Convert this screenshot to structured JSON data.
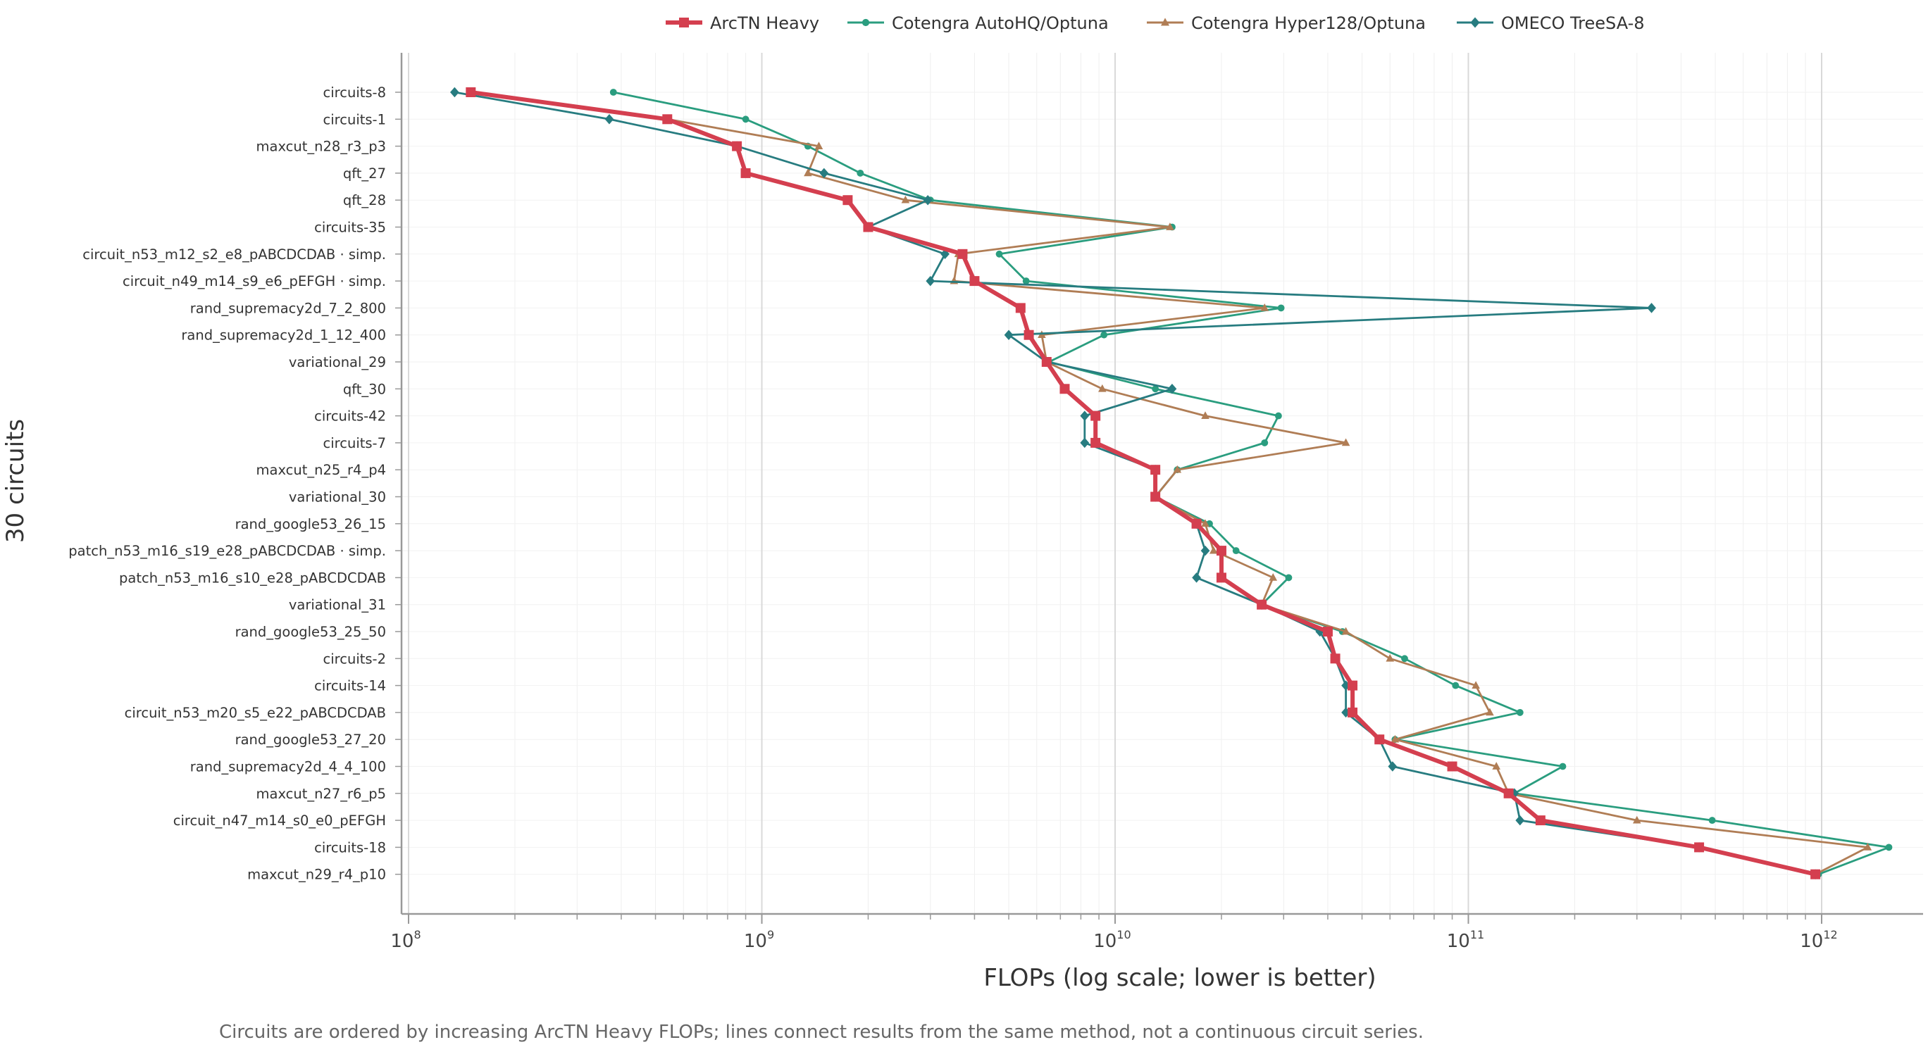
{
  "chart_data": {
    "type": "line",
    "orientation": "horizontal",
    "xlabel": "FLOPs (log scale; lower is better)",
    "ylabel": "30 circuits",
    "caption": "Circuits are ordered by increasing ArcTN Heavy FLOPs; lines connect results from the same method, not a continuous circuit series.",
    "x_scale": "log",
    "xlim": [
      100000000.0,
      1600000000000.0
    ],
    "x_ticks": [
      {
        "base": "10",
        "exp": "8",
        "value": 100000000.0
      },
      {
        "base": "10",
        "exp": "9",
        "value": 1000000000.0
      },
      {
        "base": "10",
        "exp": "10",
        "value": 10000000000.0
      },
      {
        "base": "10",
        "exp": "11",
        "value": 100000000000.0
      },
      {
        "base": "10",
        "exp": "12",
        "value": 1000000000000.0
      }
    ],
    "grid": true,
    "legend_position": "top",
    "categories": [
      "circuits-8",
      "circuits-1",
      "maxcut_n28_r3_p3",
      "qft_27",
      "qft_28",
      "circuits-35",
      "circuit_n53_m12_s2_e8_pABCDCDAB · simp.",
      "circuit_n49_m14_s9_e6_pEFGH · simp.",
      "rand_supremacy2d_7_2_800",
      "rand_supremacy2d_1_12_400",
      "variational_29",
      "qft_30",
      "circuits-42",
      "circuits-7",
      "maxcut_n25_r4_p4",
      "variational_30",
      "rand_google53_26_15",
      "patch_n53_m16_s19_e28_pABCDCDAB · simp.",
      "patch_n53_m16_s10_e28_pABCDCDAB",
      "variational_31",
      "rand_google53_25_50",
      "circuits-2",
      "circuits-14",
      "circuit_n53_m20_s5_e22_pABCDCDAB",
      "rand_google53_27_20",
      "rand_supremacy2d_4_4_100",
      "maxcut_n27_r6_p5",
      "circuit_n47_m14_s0_e0_pEFGH",
      "circuits-18",
      "maxcut_n29_r4_p10"
    ],
    "series": [
      {
        "name": "ArcTN Heavy",
        "color": "#d43f4f",
        "marker": "square",
        "values": [
          150000000.0,
          540000000.0,
          850000000.0,
          900000000.0,
          1750000000.0,
          2000000000.0,
          3700000000.0,
          4000000000.0,
          5400000000.0,
          5700000000.0,
          6400000000.0,
          7200000000.0,
          8800000000.0,
          8800000000.0,
          13000000000.0,
          13000000000.0,
          17000000000.0,
          20000000000.0,
          20000000000.0,
          26000000000.0,
          40000000000.0,
          42000000000.0,
          47000000000.0,
          47000000000.0,
          56000000000.0,
          90000000000.0,
          130000000000.0,
          160000000000.0,
          450000000000.0,
          960000000000.0
        ]
      },
      {
        "name": "Cotengra AutoHQ/Optuna",
        "color": "#2a9d7f",
        "marker": "circle",
        "values": [
          380000000.0,
          900000000.0,
          1350000000.0,
          1900000000.0,
          3000000000.0,
          14500000000.0,
          4700000000.0,
          5600000000.0,
          29500000000.0,
          9300000000.0,
          6500000000.0,
          13000000000.0,
          29000000000.0,
          26500000000.0,
          15000000000.0,
          13000000000.0,
          18500000000.0,
          22000000000.0,
          31000000000.0,
          26000000000.0,
          44000000000.0,
          66000000000.0,
          92000000000.0,
          140000000000.0,
          62000000000.0,
          185000000000.0,
          135000000000.0,
          490000000000.0,
          1550000000000.0,
          980000000000.0
        ]
      },
      {
        "name": "Cotengra Hyper128/Optuna",
        "color": "#b07d55",
        "marker": "triangle",
        "values": [
          150000000.0,
          540000000.0,
          1450000000.0,
          1350000000.0,
          2550000000.0,
          14300000000.0,
          3600000000.0,
          3500000000.0,
          26500000000.0,
          6200000000.0,
          6400000000.0,
          9200000000.0,
          18000000000.0,
          45000000000.0,
          15000000000.0,
          13000000000.0,
          18000000000.0,
          19000000000.0,
          28000000000.0,
          26000000000.0,
          45000000000.0,
          60000000000.0,
          105000000000.0,
          115000000000.0,
          62000000000.0,
          120000000000.0,
          130000000000.0,
          300000000000.0,
          1350000000000.0,
          960000000000.0
        ]
      },
      {
        "name": "OMECO TreeSA-8",
        "color": "#277c80",
        "marker": "diamond",
        "values": [
          135000000.0,
          370000000.0,
          850000000.0,
          1500000000.0,
          2950000000.0,
          2000000000.0,
          3300000000.0,
          3000000000.0,
          330000000000.0,
          5000000000.0,
          6400000000.0,
          14500000000.0,
          8200000000.0,
          8200000000.0,
          13000000000.0,
          13000000000.0,
          17000000000.0,
          18000000000.0,
          17000000000.0,
          26000000000.0,
          38000000000.0,
          42000000000.0,
          45000000000.0,
          45000000000.0,
          56000000000.0,
          61000000000.0,
          135000000000.0,
          140000000000.0,
          450000000000.0,
          960000000000.0
        ]
      }
    ]
  }
}
